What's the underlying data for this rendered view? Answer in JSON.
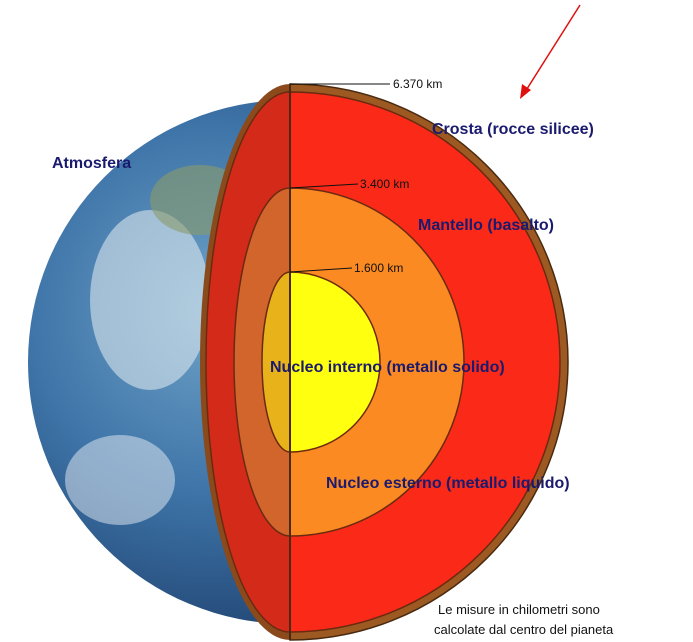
{
  "labels": {
    "atmosphere": "Atmosfera",
    "crust": "Crosta (rocce silicee)",
    "mantle": "Mantello (basalto)",
    "inner_core": "Nucleo interno (metallo solido)",
    "outer_core": "Nucleo esterno (metallo liquido)"
  },
  "distances": {
    "crust": "6.370 km",
    "mantle": "3.400 km",
    "inner_core": "1.600 km"
  },
  "note": [
    "Le misure in chilometri sono",
    "calcolate dal centro del pianeta"
  ]
}
